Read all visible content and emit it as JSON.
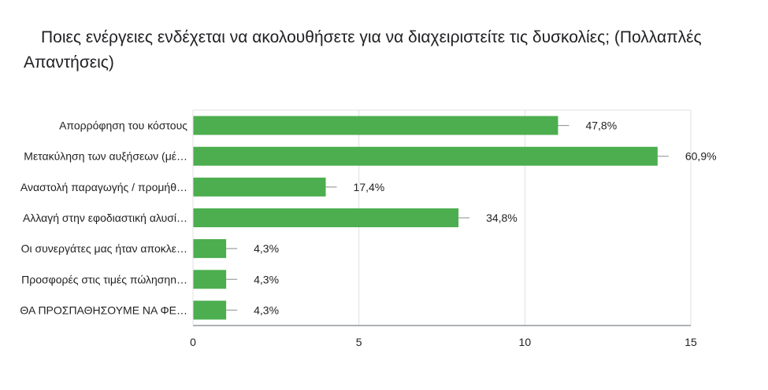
{
  "title": "Ποιες ενέργειες ενδέχεται να ακολουθήσετε για να διαχειριστείτε τις δυσκολίες; (Πολλαπλές Απαντήσεις)",
  "colors": {
    "bar": "#4cae4f",
    "grid": "#e0e0e0",
    "axis": "#5f6368",
    "errorbar": "#9e9e9e"
  },
  "chart_data": {
    "type": "bar",
    "orientation": "horizontal",
    "categories": [
      "Απορρόφηση του κόστους",
      "Μετακύληση των αυξήσεων (μέ…",
      "Αναστολή παραγωγής / προμήθ…",
      "Αλλαγή στην εφοδιαστική αλυσί…",
      "Οι συνεργάτες μας ήταν αποκλε…",
      "Προσφορές στις τιμές πώλησηn…",
      "ΘΑ ΠΡΟΣΠΑΘΗΣΟΥΜΕ ΝΑ ΦΕ…"
    ],
    "values": [
      11,
      14,
      4,
      8,
      1,
      1,
      1
    ],
    "value_labels": [
      "47,8%",
      "60,9%",
      "17,4%",
      "34,8%",
      "4,3%",
      "4,3%",
      "4,3%"
    ],
    "xlim": [
      0,
      15
    ],
    "xticks": [
      "0",
      "5",
      "10",
      "15"
    ],
    "grid": true
  }
}
